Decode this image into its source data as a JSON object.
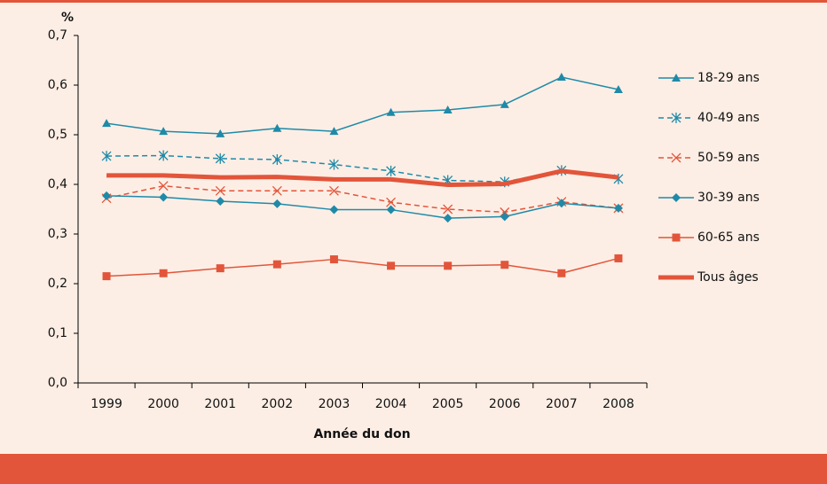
{
  "chart_data": {
    "type": "line",
    "y_axis_unit": "%",
    "x_axis_label": "Année du don",
    "categories": [
      "1999",
      "2000",
      "2001",
      "2002",
      "2003",
      "2004",
      "2005",
      "2006",
      "2007",
      "2008"
    ],
    "ylim": [
      0,
      0.7
    ],
    "yticks": [
      {
        "value": 0,
        "label": "0,0"
      },
      {
        "value": 0.1,
        "label": "0,1"
      },
      {
        "value": 0.2,
        "label": "0,2"
      },
      {
        "value": 0.3,
        "label": "0,3"
      },
      {
        "value": 0.4,
        "label": "0,4"
      },
      {
        "value": 0.5,
        "label": "0,5"
      },
      {
        "value": 0.6,
        "label": "0,6"
      },
      {
        "value": 0.7,
        "label": "0,7"
      }
    ],
    "legend": "right",
    "series": [
      {
        "name": "18-29 ans",
        "color": "#1f8aa8",
        "marker": "triangle",
        "dashed": false,
        "width": 1.5,
        "values": [
          0.523,
          0.507,
          0.502,
          0.513,
          0.507,
          0.545,
          0.55,
          0.561,
          0.616,
          0.591
        ]
      },
      {
        "name": "40-49 ans",
        "color": "#1f8aa8",
        "marker": "asterisk",
        "dashed": true,
        "width": 1.5,
        "values": [
          0.457,
          0.458,
          0.452,
          0.45,
          0.44,
          0.427,
          0.408,
          0.405,
          0.428,
          0.411
        ]
      },
      {
        "name": "50-59 ans",
        "color": "#e2553a",
        "marker": "cross",
        "dashed": true,
        "width": 1.5,
        "values": [
          0.372,
          0.397,
          0.387,
          0.387,
          0.387,
          0.364,
          0.35,
          0.344,
          0.365,
          0.352
        ]
      },
      {
        "name": "30-39 ans",
        "color": "#1f8aa8",
        "marker": "diamond",
        "dashed": false,
        "width": 1.5,
        "values": [
          0.377,
          0.374,
          0.366,
          0.361,
          0.349,
          0.349,
          0.332,
          0.335,
          0.362,
          0.352
        ]
      },
      {
        "name": "60-65 ans",
        "color": "#e2553a",
        "marker": "square",
        "dashed": false,
        "width": 1.5,
        "values": [
          0.215,
          0.221,
          0.231,
          0.239,
          0.249,
          0.236,
          0.236,
          0.238,
          0.221,
          0.251
        ]
      },
      {
        "name": "Tous âges",
        "color": "#e2553a",
        "marker": "none",
        "dashed": false,
        "width": 5,
        "values": [
          0.418,
          0.418,
          0.414,
          0.415,
          0.41,
          0.41,
          0.399,
          0.401,
          0.427,
          0.414
        ]
      }
    ]
  }
}
